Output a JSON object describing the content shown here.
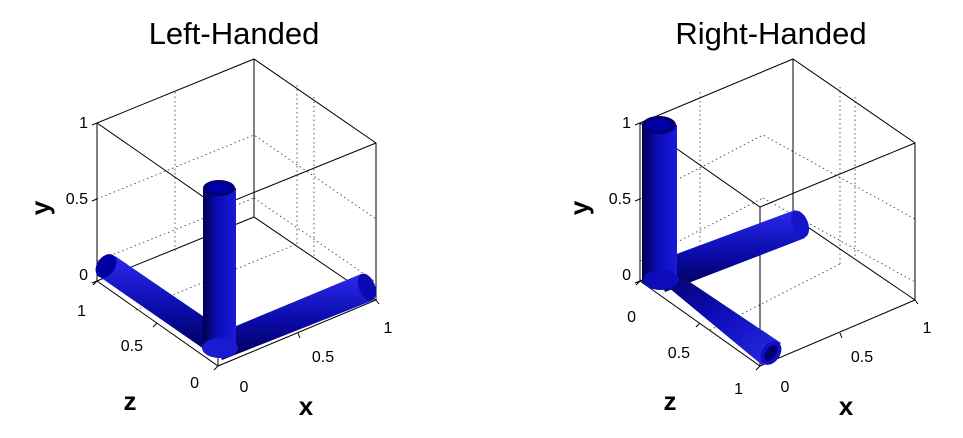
{
  "panels": [
    {
      "title": "Left-Handed",
      "axes": {
        "x": {
          "label": "x",
          "ticks": [
            "0",
            "0.5",
            "1"
          ]
        },
        "y": {
          "label": "y",
          "ticks": [
            "0",
            "0.5",
            "1"
          ]
        },
        "z": {
          "label": "z",
          "ticks": [
            "0",
            "0.5",
            "1"
          ]
        }
      }
    },
    {
      "title": "Right-Handed",
      "axes": {
        "x": {
          "label": "x",
          "ticks": [
            "0",
            "0.5",
            "1"
          ]
        },
        "y": {
          "label": "y",
          "ticks": [
            "0",
            "0.5",
            "1"
          ]
        },
        "z": {
          "label": "z",
          "ticks": [
            "0",
            "0.5",
            "1"
          ]
        }
      }
    }
  ],
  "colors": {
    "tube": "#1010cc",
    "tube_dark": "#000060",
    "tube_light": "#4a4aff"
  }
}
